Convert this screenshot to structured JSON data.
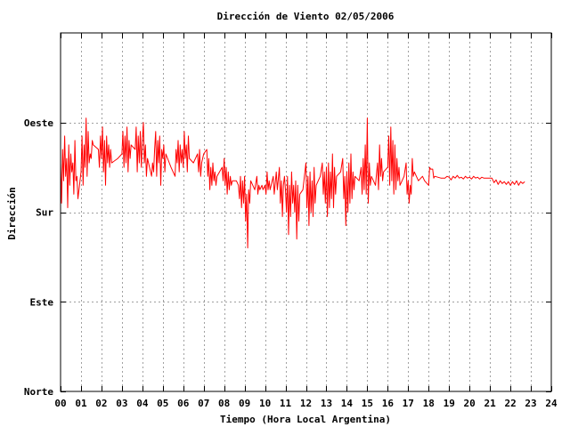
{
  "chart_data": {
    "type": "line",
    "title": "Dirección de Viento 02/05/2006",
    "xlabel": "Tiempo (Hora Local Argentina)",
    "ylabel": "Dirección",
    "xlim": [
      0,
      24
    ],
    "ylim": [
      0,
      4
    ],
    "x_ticks": [
      "00",
      "01",
      "02",
      "03",
      "04",
      "05",
      "06",
      "07",
      "08",
      "09",
      "10",
      "11",
      "12",
      "13",
      "14",
      "15",
      "16",
      "17",
      "18",
      "19",
      "20",
      "21",
      "22",
      "23",
      "24"
    ],
    "y_ticks": [
      {
        "value": 0,
        "label": "Norte"
      },
      {
        "value": 1,
        "label": "Este"
      },
      {
        "value": 2,
        "label": "Sur"
      },
      {
        "value": 3,
        "label": "Oeste"
      }
    ],
    "grid": true,
    "series": [
      {
        "color": "#ff0000",
        "points": [
          [
            0.0,
            2.55
          ],
          [
            0.05,
            2.1
          ],
          [
            0.1,
            2.7
          ],
          [
            0.15,
            2.35
          ],
          [
            0.2,
            2.85
          ],
          [
            0.25,
            2.4
          ],
          [
            0.3,
            2.6
          ],
          [
            0.35,
            2.05
          ],
          [
            0.4,
            2.75
          ],
          [
            0.45,
            2.3
          ],
          [
            0.5,
            2.65
          ],
          [
            0.55,
            2.45
          ],
          [
            0.6,
            2.55
          ],
          [
            0.65,
            2.2
          ],
          [
            0.7,
            2.8
          ],
          [
            0.75,
            2.35
          ],
          [
            0.8,
            2.4
          ],
          [
            0.85,
            2.15
          ],
          [
            1.0,
            2.45
          ],
          [
            1.05,
            2.85
          ],
          [
            1.1,
            2.3
          ],
          [
            1.15,
            2.75
          ],
          [
            1.2,
            2.5
          ],
          [
            1.25,
            3.05
          ],
          [
            1.3,
            2.4
          ],
          [
            1.35,
            2.9
          ],
          [
            1.4,
            2.55
          ],
          [
            1.45,
            2.65
          ],
          [
            1.5,
            2.6
          ],
          [
            1.55,
            2.8
          ],
          [
            1.6,
            2.75
          ],
          [
            1.85,
            2.7
          ],
          [
            1.9,
            2.5
          ],
          [
            1.95,
            2.85
          ],
          [
            2.0,
            2.6
          ],
          [
            2.05,
            2.95
          ],
          [
            2.1,
            2.45
          ],
          [
            2.15,
            2.8
          ],
          [
            2.2,
            2.3
          ],
          [
            2.25,
            2.85
          ],
          [
            2.3,
            2.55
          ],
          [
            2.35,
            2.75
          ],
          [
            2.4,
            2.5
          ],
          [
            2.45,
            2.7
          ],
          [
            2.5,
            2.55
          ],
          [
            2.8,
            2.6
          ],
          [
            3.0,
            2.65
          ],
          [
            3.05,
            2.9
          ],
          [
            3.1,
            2.5
          ],
          [
            3.15,
            2.85
          ],
          [
            3.2,
            2.55
          ],
          [
            3.25,
            2.95
          ],
          [
            3.3,
            2.45
          ],
          [
            3.35,
            2.8
          ],
          [
            3.4,
            2.6
          ],
          [
            3.45,
            2.75
          ],
          [
            3.65,
            2.7
          ],
          [
            3.7,
            2.95
          ],
          [
            3.75,
            2.45
          ],
          [
            3.8,
            2.85
          ],
          [
            3.85,
            2.55
          ],
          [
            3.9,
            2.9
          ],
          [
            3.95,
            2.5
          ],
          [
            4.0,
            2.8
          ],
          [
            4.05,
            3.0
          ],
          [
            4.1,
            2.55
          ],
          [
            4.15,
            2.75
          ],
          [
            4.2,
            2.4
          ],
          [
            4.25,
            2.6
          ],
          [
            4.45,
            2.4
          ],
          [
            4.5,
            2.55
          ],
          [
            4.55,
            2.45
          ],
          [
            4.6,
            2.7
          ],
          [
            4.65,
            2.9
          ],
          [
            4.7,
            2.4
          ],
          [
            4.75,
            2.8
          ],
          [
            4.8,
            2.55
          ],
          [
            4.85,
            2.85
          ],
          [
            4.9,
            2.3
          ],
          [
            4.95,
            2.7
          ],
          [
            5.0,
            2.6
          ],
          [
            5.05,
            2.75
          ],
          [
            5.1,
            2.45
          ],
          [
            5.15,
            2.65
          ],
          [
            5.4,
            2.5
          ],
          [
            5.6,
            2.4
          ],
          [
            5.65,
            2.7
          ],
          [
            5.7,
            2.55
          ],
          [
            5.75,
            2.8
          ],
          [
            5.8,
            2.45
          ],
          [
            5.85,
            2.75
          ],
          [
            5.9,
            2.55
          ],
          [
            5.95,
            2.7
          ],
          [
            6.0,
            2.5
          ],
          [
            6.05,
            2.9
          ],
          [
            6.1,
            2.6
          ],
          [
            6.15,
            2.75
          ],
          [
            6.2,
            2.45
          ],
          [
            6.25,
            2.85
          ],
          [
            6.3,
            2.6
          ],
          [
            6.5,
            2.55
          ],
          [
            6.7,
            2.65
          ],
          [
            6.75,
            2.45
          ],
          [
            6.8,
            2.7
          ],
          [
            6.85,
            2.4
          ],
          [
            6.9,
            2.55
          ],
          [
            7.0,
            2.65
          ],
          [
            7.15,
            2.7
          ],
          [
            7.2,
            2.4
          ],
          [
            7.25,
            2.6
          ],
          [
            7.3,
            2.25
          ],
          [
            7.35,
            2.5
          ],
          [
            7.4,
            2.3
          ],
          [
            7.45,
            2.55
          ],
          [
            7.5,
            2.35
          ],
          [
            7.55,
            2.45
          ],
          [
            7.6,
            2.3
          ],
          [
            7.65,
            2.4
          ],
          [
            7.9,
            2.5
          ],
          [
            7.95,
            2.35
          ],
          [
            8.0,
            2.6
          ],
          [
            8.05,
            2.3
          ],
          [
            8.1,
            2.5
          ],
          [
            8.15,
            2.2
          ],
          [
            8.2,
            2.45
          ],
          [
            8.25,
            2.25
          ],
          [
            8.3,
            2.4
          ],
          [
            8.35,
            2.3
          ],
          [
            8.4,
            2.35
          ],
          [
            8.6,
            2.35
          ],
          [
            8.7,
            2.3
          ],
          [
            8.75,
            2.15
          ],
          [
            8.8,
            2.4
          ],
          [
            8.85,
            2.05
          ],
          [
            8.9,
            2.35
          ],
          [
            8.95,
            2.1
          ],
          [
            9.0,
            2.4
          ],
          [
            9.05,
            1.9
          ],
          [
            9.1,
            2.2
          ],
          [
            9.15,
            1.6
          ],
          [
            9.2,
            2.25
          ],
          [
            9.25,
            2.1
          ],
          [
            9.3,
            2.35
          ],
          [
            9.5,
            2.25
          ],
          [
            9.6,
            2.4
          ],
          [
            9.65,
            2.2
          ],
          [
            9.7,
            2.3
          ],
          [
            9.75,
            2.25
          ],
          [
            9.85,
            2.3
          ],
          [
            9.9,
            2.25
          ],
          [
            10.0,
            2.3
          ],
          [
            10.05,
            2.2
          ],
          [
            10.1,
            2.45
          ],
          [
            10.15,
            2.25
          ],
          [
            10.2,
            2.35
          ],
          [
            10.25,
            2.25
          ],
          [
            10.4,
            2.4
          ],
          [
            10.45,
            2.2
          ],
          [
            10.55,
            2.45
          ],
          [
            10.6,
            2.25
          ],
          [
            10.7,
            2.5
          ],
          [
            10.75,
            2.1
          ],
          [
            10.8,
            2.35
          ],
          [
            10.85,
            1.95
          ],
          [
            10.9,
            2.3
          ],
          [
            10.95,
            2.4
          ],
          [
            11.0,
            2.25
          ],
          [
            11.05,
            2.0
          ],
          [
            11.1,
            2.4
          ],
          [
            11.15,
            1.75
          ],
          [
            11.2,
            2.3
          ],
          [
            11.25,
            1.95
          ],
          [
            11.3,
            2.45
          ],
          [
            11.35,
            2.1
          ],
          [
            11.4,
            2.3
          ],
          [
            11.45,
            2.0
          ],
          [
            11.5,
            2.35
          ],
          [
            11.55,
            1.7
          ],
          [
            11.6,
            2.3
          ],
          [
            11.65,
            1.9
          ],
          [
            11.7,
            2.2
          ],
          [
            11.85,
            2.25
          ],
          [
            12.0,
            2.55
          ],
          [
            12.05,
            2.05
          ],
          [
            12.1,
            2.4
          ],
          [
            12.15,
            1.85
          ],
          [
            12.2,
            2.45
          ],
          [
            12.25,
            2.0
          ],
          [
            12.3,
            2.35
          ],
          [
            12.35,
            1.95
          ],
          [
            12.4,
            2.5
          ],
          [
            12.45,
            2.1
          ],
          [
            12.5,
            2.3
          ],
          [
            12.7,
            2.4
          ],
          [
            12.8,
            2.55
          ],
          [
            12.85,
            2.2
          ],
          [
            12.9,
            2.45
          ],
          [
            12.95,
            2.1
          ],
          [
            13.0,
            2.5
          ],
          [
            13.05,
            1.95
          ],
          [
            13.1,
            2.55
          ],
          [
            13.15,
            2.05
          ],
          [
            13.2,
            2.45
          ],
          [
            13.25,
            2.15
          ],
          [
            13.3,
            2.65
          ],
          [
            13.35,
            2.05
          ],
          [
            13.4,
            2.5
          ],
          [
            13.45,
            2.2
          ],
          [
            13.5,
            2.4
          ],
          [
            13.7,
            2.45
          ],
          [
            13.8,
            2.6
          ],
          [
            13.85,
            2.15
          ],
          [
            13.9,
            2.4
          ],
          [
            13.95,
            1.85
          ],
          [
            14.0,
            2.45
          ],
          [
            14.05,
            2.0
          ],
          [
            14.1,
            2.55
          ],
          [
            14.15,
            2.1
          ],
          [
            14.2,
            2.65
          ],
          [
            14.25,
            2.15
          ],
          [
            14.3,
            2.45
          ],
          [
            14.35,
            2.25
          ],
          [
            14.4,
            2.4
          ],
          [
            14.6,
            2.35
          ],
          [
            14.7,
            2.5
          ],
          [
            14.75,
            2.2
          ],
          [
            14.8,
            2.6
          ],
          [
            14.85,
            2.25
          ],
          [
            14.9,
            2.75
          ],
          [
            14.95,
            2.2
          ],
          [
            15.0,
            3.05
          ],
          [
            15.05,
            2.1
          ],
          [
            15.1,
            2.55
          ],
          [
            15.15,
            2.3
          ],
          [
            15.2,
            2.4
          ],
          [
            15.4,
            2.3
          ],
          [
            15.5,
            2.55
          ],
          [
            15.55,
            2.25
          ],
          [
            15.6,
            2.75
          ],
          [
            15.65,
            2.4
          ],
          [
            15.7,
            2.6
          ],
          [
            15.75,
            2.35
          ],
          [
            15.8,
            2.45
          ],
          [
            16.0,
            2.5
          ],
          [
            16.05,
            2.85
          ],
          [
            16.1,
            2.3
          ],
          [
            16.15,
            2.95
          ],
          [
            16.2,
            2.35
          ],
          [
            16.25,
            2.8
          ],
          [
            16.3,
            2.2
          ],
          [
            16.35,
            2.75
          ],
          [
            16.4,
            2.25
          ],
          [
            16.45,
            2.6
          ],
          [
            16.5,
            2.35
          ],
          [
            16.55,
            2.5
          ],
          [
            16.6,
            2.3
          ],
          [
            16.8,
            2.4
          ],
          [
            16.9,
            2.55
          ],
          [
            16.95,
            2.2
          ],
          [
            17.0,
            2.35
          ],
          [
            17.05,
            2.1
          ],
          [
            17.1,
            2.3
          ],
          [
            17.15,
            2.2
          ],
          [
            17.2,
            2.6
          ],
          [
            17.25,
            2.4
          ],
          [
            17.3,
            2.45
          ],
          [
            17.5,
            2.35
          ],
          [
            17.7,
            2.4
          ],
          [
            17.8,
            2.35
          ],
          [
            18.0,
            2.3
          ],
          [
            18.05,
            2.5
          ],
          [
            18.1,
            2.48
          ],
          [
            18.2,
            2.48
          ],
          [
            18.25,
            2.38
          ],
          [
            18.3,
            2.4
          ],
          [
            18.6,
            2.38
          ],
          [
            18.8,
            2.38
          ],
          [
            18.9,
            2.4
          ],
          [
            19.0,
            2.39
          ],
          [
            19.1,
            2.36
          ],
          [
            19.2,
            2.4
          ],
          [
            19.3,
            2.38
          ],
          [
            19.4,
            2.41
          ],
          [
            19.5,
            2.38
          ],
          [
            19.6,
            2.39
          ],
          [
            19.7,
            2.37
          ],
          [
            19.8,
            2.4
          ],
          [
            19.9,
            2.38
          ],
          [
            20.0,
            2.39
          ],
          [
            20.1,
            2.37
          ],
          [
            20.2,
            2.4
          ],
          [
            20.3,
            2.38
          ],
          [
            20.4,
            2.39
          ],
          [
            20.5,
            2.37
          ],
          [
            20.6,
            2.39
          ],
          [
            20.7,
            2.38
          ],
          [
            20.9,
            2.38
          ],
          [
            21.1,
            2.38
          ],
          [
            21.2,
            2.33
          ],
          [
            21.3,
            2.36
          ],
          [
            21.4,
            2.31
          ],
          [
            21.5,
            2.35
          ],
          [
            21.6,
            2.32
          ],
          [
            21.7,
            2.34
          ],
          [
            21.8,
            2.31
          ],
          [
            21.9,
            2.34
          ],
          [
            22.0,
            2.3
          ],
          [
            22.1,
            2.34
          ],
          [
            22.2,
            2.31
          ],
          [
            22.3,
            2.35
          ],
          [
            22.4,
            2.3
          ],
          [
            22.5,
            2.34
          ],
          [
            22.6,
            2.32
          ],
          [
            22.7,
            2.34
          ]
        ]
      }
    ]
  }
}
